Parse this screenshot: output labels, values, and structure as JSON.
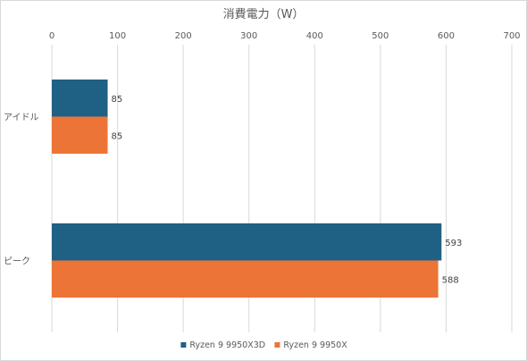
{
  "chart_data": {
    "type": "bar",
    "orientation": "horizontal",
    "title": "消費電力（W）",
    "xlim": [
      0,
      700
    ],
    "x_ticks": [
      0,
      100,
      200,
      300,
      400,
      500,
      600,
      700
    ],
    "x_tick_labels": [
      "0",
      "100",
      "200",
      "300",
      "400",
      "500",
      "600",
      "700"
    ],
    "x_axis_position": "top",
    "grid": "vertical",
    "legend_position": "bottom",
    "categories": [
      "アイドル",
      "ピーク"
    ],
    "series": [
      {
        "name": "Ryzen 9 9950X3D",
        "color": "#1f6085",
        "values": [
          85,
          593
        ],
        "value_labels": [
          "85",
          "593"
        ]
      },
      {
        "name": "Ryzen 9 9950X",
        "color": "#ec7436",
        "values": [
          85,
          588
        ],
        "value_labels": [
          "85",
          "588"
        ]
      }
    ]
  }
}
